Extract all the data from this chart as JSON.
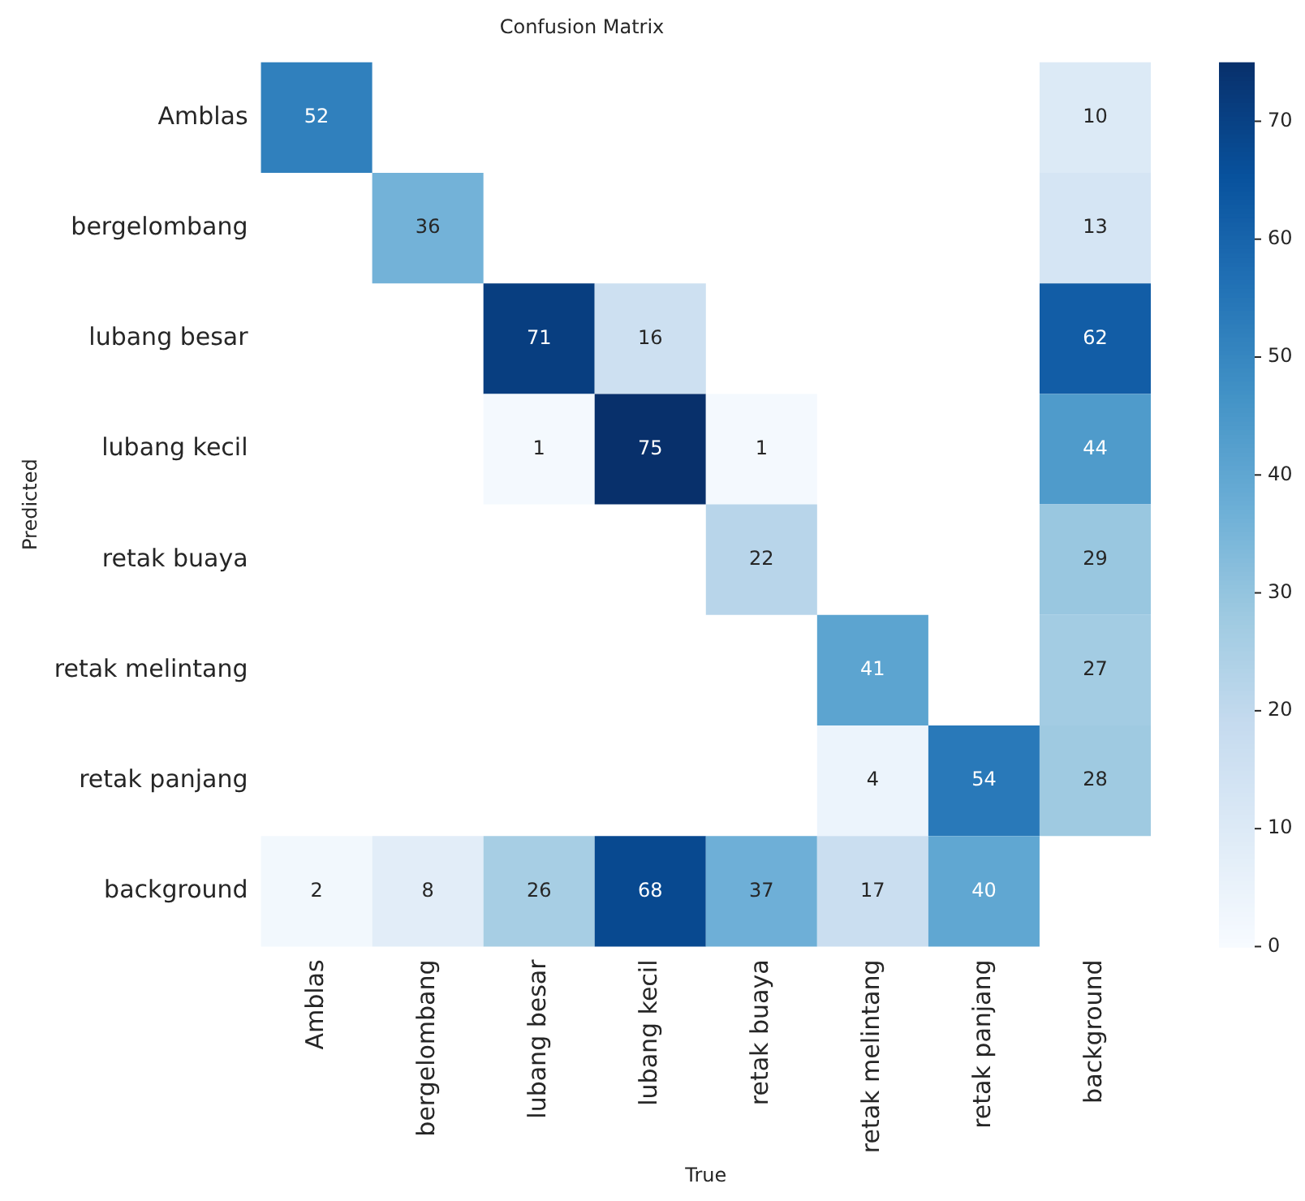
{
  "chart_data": {
    "type": "heatmap",
    "title": "Confusion Matrix",
    "xlabel": "True",
    "ylabel": "Predicted",
    "categories": [
      "Amblas",
      "bergelombang",
      "lubang besar",
      "lubang kecil",
      "retak buaya",
      "retak melintang",
      "retak panjang",
      "background"
    ],
    "y_categories": [
      "Amblas",
      "bergelombang",
      "lubang besar",
      "lubang kecil",
      "retak buaya",
      "retak melintang",
      "retak panjang",
      "background"
    ],
    "cells": [
      [
        52,
        null,
        null,
        null,
        null,
        null,
        null,
        10
      ],
      [
        null,
        36,
        null,
        null,
        null,
        null,
        null,
        13
      ],
      [
        null,
        null,
        71,
        16,
        null,
        null,
        null,
        62
      ],
      [
        null,
        null,
        1,
        75,
        1,
        null,
        null,
        44
      ],
      [
        null,
        null,
        null,
        null,
        22,
        null,
        null,
        29
      ],
      [
        null,
        null,
        null,
        null,
        null,
        41,
        null,
        27
      ],
      [
        null,
        null,
        null,
        null,
        null,
        4,
        54,
        28
      ],
      [
        2,
        8,
        26,
        68,
        37,
        17,
        40,
        null
      ]
    ],
    "clim": [
      0,
      75
    ],
    "cticks": [
      0,
      10,
      20,
      30,
      40,
      50,
      60,
      70
    ],
    "data_labels": true
  }
}
